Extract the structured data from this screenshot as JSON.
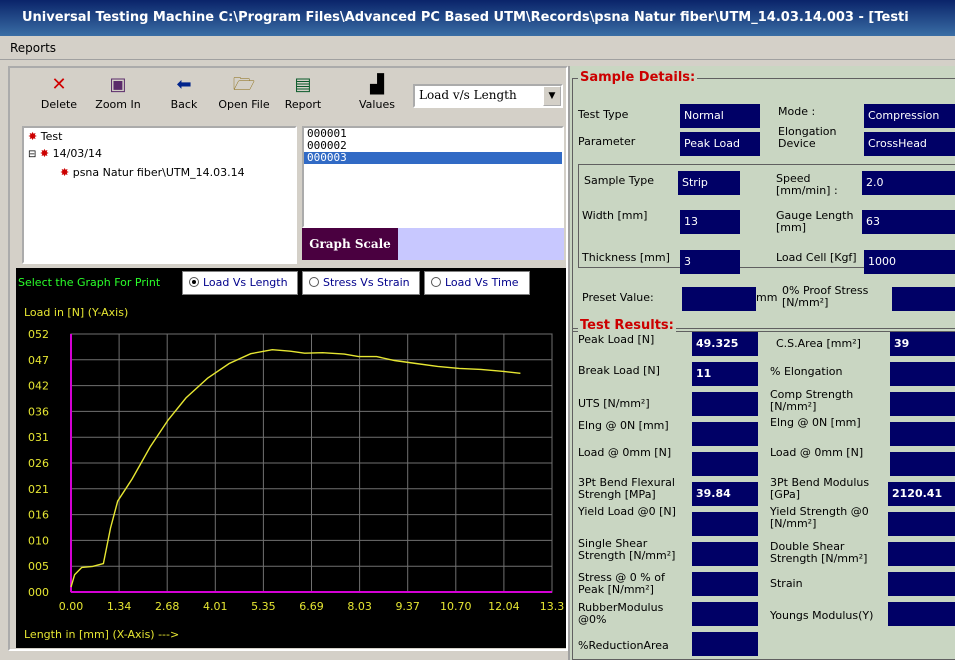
{
  "window": {
    "title": "Universal Testing Machine C:\\Program Files\\Advanced PC Based UTM\\Records\\psna Natur fiber\\UTM_14.03.14.003 - [Testi"
  },
  "menu": {
    "reports": "Reports"
  },
  "toolbar": {
    "delete": "Delete",
    "zoom_in": "Zoom In",
    "back": "Back",
    "open_file": "Open File",
    "report": "Report",
    "values": "Values",
    "graph_select": "Load v/s Length"
  },
  "tree": {
    "root": "Test",
    "date": "14/03/14",
    "record": "psna Natur fiber\\UTM_14.03.14"
  },
  "files": [
    "000001",
    "000002",
    "000003"
  ],
  "graph_scale_button": "Graph Scale",
  "print_select": {
    "label": "Select the Graph For Print",
    "opt1": "Load Vs Length",
    "opt2": "Stress Vs Strain",
    "opt3": "Load Vs Time"
  },
  "chart_data": {
    "type": "line",
    "ylabel": "Load in [N]  (Y-Axis)",
    "xlabel": "Length in [mm]  (X-Axis) --->",
    "y_ticks": [
      "000",
      "005",
      "010",
      "016",
      "021",
      "026",
      "031",
      "036",
      "042",
      "047",
      "052"
    ],
    "x_ticks": [
      "0.00",
      "1.34",
      "2.68",
      "4.01",
      "5.35",
      "6.69",
      "8.03",
      "9.37",
      "10.70",
      "12.04",
      "13.3"
    ],
    "xlim": [
      0,
      13.38
    ],
    "ylim": [
      0,
      52.5
    ],
    "x": [
      0,
      0.1,
      0.3,
      0.6,
      0.9,
      1.1,
      1.3,
      1.7,
      2.2,
      2.7,
      3.2,
      3.8,
      4.4,
      5.0,
      5.6,
      6.1,
      6.5,
      7.0,
      7.6,
      8.0,
      8.5,
      9.0,
      9.6,
      10.2,
      10.8,
      11.4,
      12.0,
      12.5
    ],
    "y": [
      1.0,
      3.5,
      5.0,
      5.2,
      5.8,
      13.0,
      18.5,
      23.0,
      29.5,
      35.0,
      39.5,
      43.5,
      46.5,
      48.5,
      49.3,
      49.0,
      48.6,
      48.7,
      48.4,
      47.9,
      47.9,
      47.1,
      46.5,
      45.9,
      45.5,
      45.3,
      44.9,
      44.5
    ],
    "grid": true,
    "color": "#e6e632"
  },
  "sample_details": {
    "title": "Sample Details:",
    "test_type_label": "Test Type",
    "test_type": "Normal",
    "mode_label": "Mode :",
    "mode": "Compression",
    "parameter_label": "Parameter",
    "parameter": "Peak Load",
    "elong_device_label": "Elongation Device",
    "elong_device": "CrossHead",
    "sample_type_label": "Sample Type",
    "sample_type": "Strip",
    "speed_label": "Speed [mm/min] :",
    "speed": "2.0",
    "width_label": "Width [mm]",
    "width": "13",
    "gauge_label": "Gauge Length [mm]",
    "gauge": "63",
    "thickness_label": "Thickness [mm]",
    "thickness": "3",
    "loadcell_label": "Load Cell [Kgf]",
    "loadcell": "1000"
  },
  "preset": {
    "label": "Preset Value:",
    "unit": "mm",
    "proof_label": "0% Proof Stress [N/mm²]"
  },
  "results": {
    "title": "Test Results:",
    "peak_load_label": "Peak Load [N]",
    "peak_load": "49.325",
    "cs_area_label": "C.S.Area [mm²]",
    "cs_area": "39",
    "break_load_label": "Break Load [N]",
    "break_load": "11",
    "elongation_label": "% Elongation",
    "uts_label": "UTS [N/mm²]",
    "comp_strength_label": "Comp Strength [N/mm²]",
    "elng0_label": "Elng @ 0N [mm]",
    "elng0r_label": "Elng @ 0N [mm]",
    "load0_label": "Load @ 0mm [N]",
    "load0r_label": "Load @ 0mm [N]",
    "flex_label": "3Pt Bend Flexural Strengh [MPa]",
    "flex": "39.84",
    "modulus_label": "3Pt Bend Modulus [GPa]",
    "modulus": "2120.41",
    "yield_load_label": "Yield Load @0 [N]",
    "yield_strength_label": "Yield Strength @0 [N/mm²]",
    "single_shear_label": "Single Shear Strength [N/mm²]",
    "double_shear_label": "Double Shear Strength [N/mm²]",
    "stress_peak_label": "Stress @ 0 % of Peak [N/mm²]",
    "strain_label": "Strain",
    "rubber_label": "RubberModulus @0%",
    "youngs_label": "Youngs Modulus(Y)",
    "reduction_label": "%ReductionArea"
  }
}
